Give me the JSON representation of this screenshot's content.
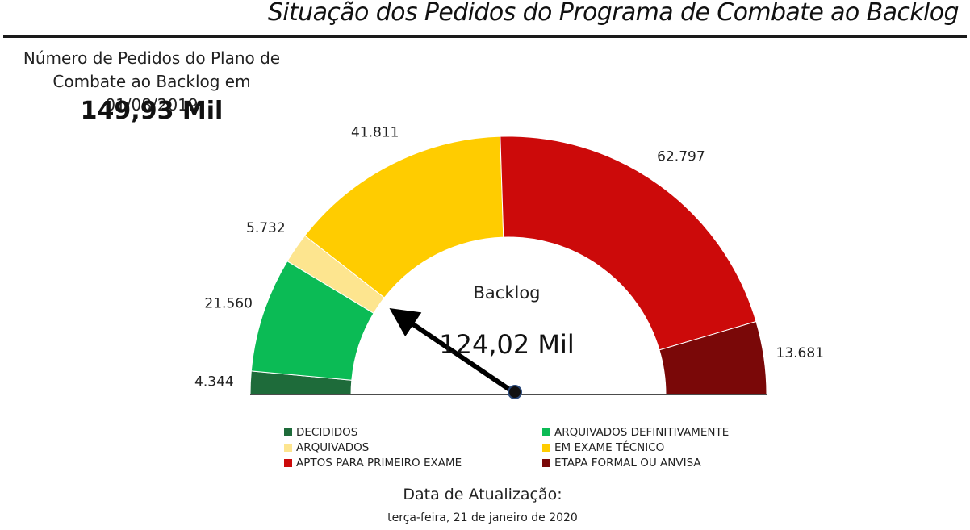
{
  "header": {
    "title": "Situação dos Pedidos do Programa de Combate ao Backlog"
  },
  "kpi": {
    "label": "Número de Pedidos do Plano de Combate ao Backlog em 01/08/2019",
    "value": "149,93 Mil"
  },
  "chart_data": {
    "type": "gauge",
    "center_label": "Backlog",
    "needle_value_label": "124,02 Mil",
    "segments": [
      {
        "name": "DECIDIDOS",
        "value": 4344,
        "label": "4.344",
        "color": "#1e6b3a"
      },
      {
        "name": "ARQUIVADOS DEFINITIVAMENTE",
        "value": 21560,
        "label": "21.560",
        "color": "#0bbb55"
      },
      {
        "name": "ARQUIVADOS",
        "value": 5732,
        "label": "5.732",
        "color": "#fde58f"
      },
      {
        "name": "EM EXAME TÉCNICO",
        "value": 41811,
        "label": "41.811",
        "color": "#ffcc00"
      },
      {
        "name": "APTOS PARA PRIMEIRO EXAME",
        "value": 62797,
        "label": "62.797",
        "color": "#cc0a0a"
      },
      {
        "name": "ETAPA FORMAL OU ANVISA",
        "value": 13681,
        "label": "13.681",
        "color": "#7a0808"
      }
    ],
    "needle_position_value": 30000,
    "total": 149925
  },
  "legend": {
    "items": [
      {
        "label": "DECIDIDOS",
        "color": "#1e6b3a"
      },
      {
        "label": "ARQUIVADOS DEFINITIVAMENTE",
        "color": "#0bbb55"
      },
      {
        "label": "ARQUIVADOS",
        "color": "#fde58f"
      },
      {
        "label": "EM EXAME TÉCNICO",
        "color": "#ffcc00"
      },
      {
        "label": "APTOS PARA PRIMEIRO EXAME",
        "color": "#cc0a0a"
      },
      {
        "label": "ETAPA FORMAL OU ANVISA",
        "color": "#7a0808"
      }
    ]
  },
  "footer": {
    "update_label": "Data de Atualização:",
    "update_date": "terça-feira, 21 de janeiro de 2020"
  }
}
